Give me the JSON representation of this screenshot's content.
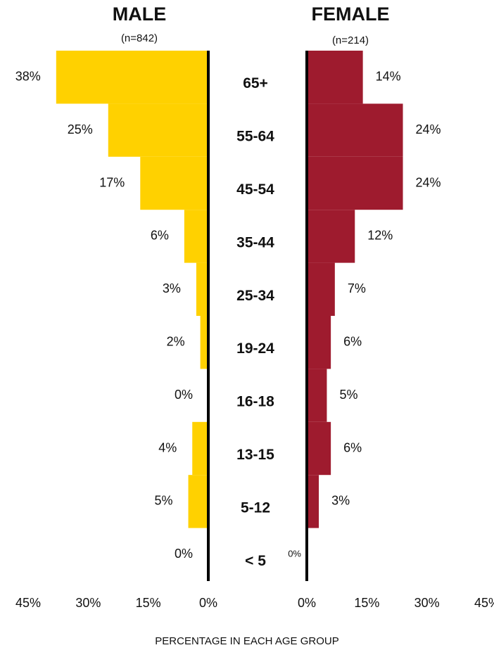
{
  "chart_data": {
    "type": "pyramid",
    "categories": [
      "65+",
      "55-64",
      "45-54",
      "35-44",
      "25-34",
      "19-24",
      "16-18",
      "13-15",
      "5-12",
      "< 5"
    ],
    "series": [
      {
        "name": "MALE",
        "subtitle": "(n=842)",
        "color": "#ffd100",
        "values": [
          38,
          25,
          17,
          6,
          3,
          2,
          0,
          4,
          5,
          0
        ],
        "value_labels": [
          "38%",
          "25%",
          "17%",
          "6%",
          "3%",
          "2%",
          "0%",
          "4%",
          "5%",
          "0%"
        ]
      },
      {
        "name": "FEMALE",
        "subtitle": "(n=214)",
        "color": "#9e1b2e",
        "values": [
          14,
          24,
          24,
          12,
          7,
          6,
          5,
          6,
          3,
          0
        ],
        "value_labels": [
          "14%",
          "24%",
          "24%",
          "12%",
          "7%",
          "6%",
          "5%",
          "6%",
          "3%",
          "0%"
        ]
      }
    ],
    "xlim": [
      0,
      45
    ],
    "xticks": [
      {
        "value": 0,
        "label": "0%"
      },
      {
        "value": 15,
        "label": "15%"
      },
      {
        "value": 30,
        "label": "30%"
      },
      {
        "value": 45,
        "label": "45%"
      }
    ],
    "xlabel": "PERCENTAGE IN EACH AGE GROUP"
  }
}
